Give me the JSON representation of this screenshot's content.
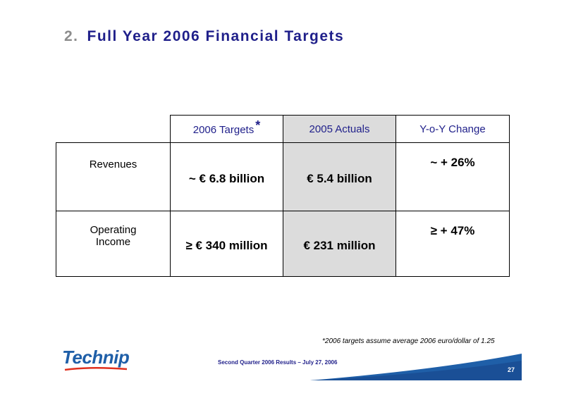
{
  "slide": {
    "number": "2.",
    "title": "Full Year 2006 Financial Targets"
  },
  "table": {
    "headers": [
      "2006 Targets",
      "2005 Actuals",
      "Y-o-Y Change"
    ],
    "header_marker": "*",
    "rows": [
      {
        "label": "Revenues",
        "target": "~ € 6.8 billion",
        "actual": "€ 5.4 billion",
        "change": "~ + 26%"
      },
      {
        "label": "Operating Income",
        "target": "≥ € 340 million",
        "actual": "€ 231 million",
        "change": "≥ + 47%"
      }
    ]
  },
  "footnote": "*2006 targets assume average 2006 euro/dollar of 1.25",
  "footer": {
    "text": "Second Quarter 2006 Results – July 27, 2006",
    "page": "27",
    "logo": "Technip"
  },
  "colors": {
    "title": "#1f1f8a",
    "shade": "#dcdcdc",
    "band": "#1f5fa8"
  }
}
